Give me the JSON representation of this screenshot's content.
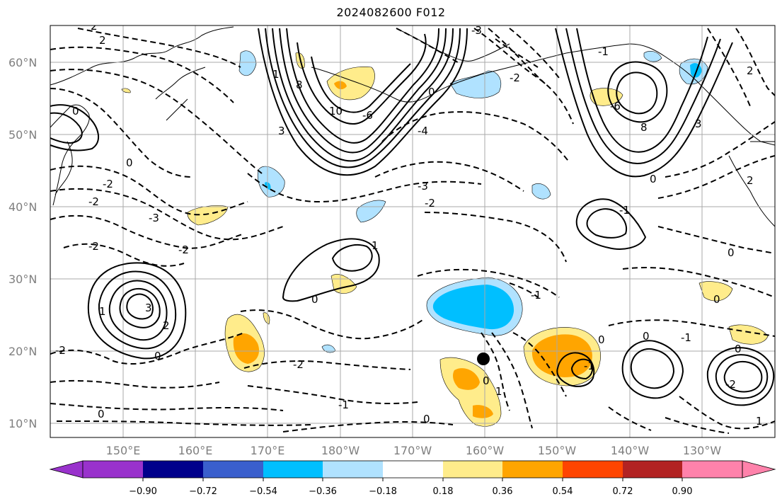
{
  "title": "2024082600 F012",
  "latitude_labels": [
    "60°N",
    "50°N",
    "40°N",
    "30°N",
    "20°N",
    "10°N"
  ],
  "longitude_labels": [
    "150°E",
    "160°E",
    "170°E",
    "180°W",
    "170°W",
    "160°W",
    "150°W",
    "140°W",
    "130°W"
  ],
  "colorbar": {
    "tick_labels": [
      "−0.90",
      "−0.72",
      "−0.54",
      "−0.36",
      "−0.18",
      "0.18",
      "0.36",
      "0.54",
      "0.72",
      "0.90"
    ],
    "colors": [
      "#9932cc",
      "#00008b",
      "#3a5fcd",
      "#00bfff",
      "#b0e2ff",
      "#ffffff",
      "#ffec8b",
      "#ffa500",
      "#ff4500",
      "#b22222",
      "#ff82ab"
    ]
  },
  "contour_labels": [
    "2",
    "2",
    "0",
    "0",
    "-2",
    "-3",
    "-2",
    "-2",
    "-2",
    "-3",
    "0",
    "-2",
    "0",
    "-2",
    "3",
    "2",
    "1",
    "0",
    "-2",
    "-1",
    "0",
    "-1",
    "1",
    "0",
    "1",
    "0",
    "-1",
    "0",
    "-1",
    "0",
    "10",
    "8",
    "-6",
    "-4",
    "3",
    "1",
    "0",
    "-3",
    "-2",
    "8",
    "-6",
    "3",
    "0",
    "-1",
    "-1",
    "0",
    "2",
    "2",
    "0",
    "-2",
    "1"
  ],
  "storm_marker": {
    "lon": -160.3,
    "lat": 19.1
  }
}
